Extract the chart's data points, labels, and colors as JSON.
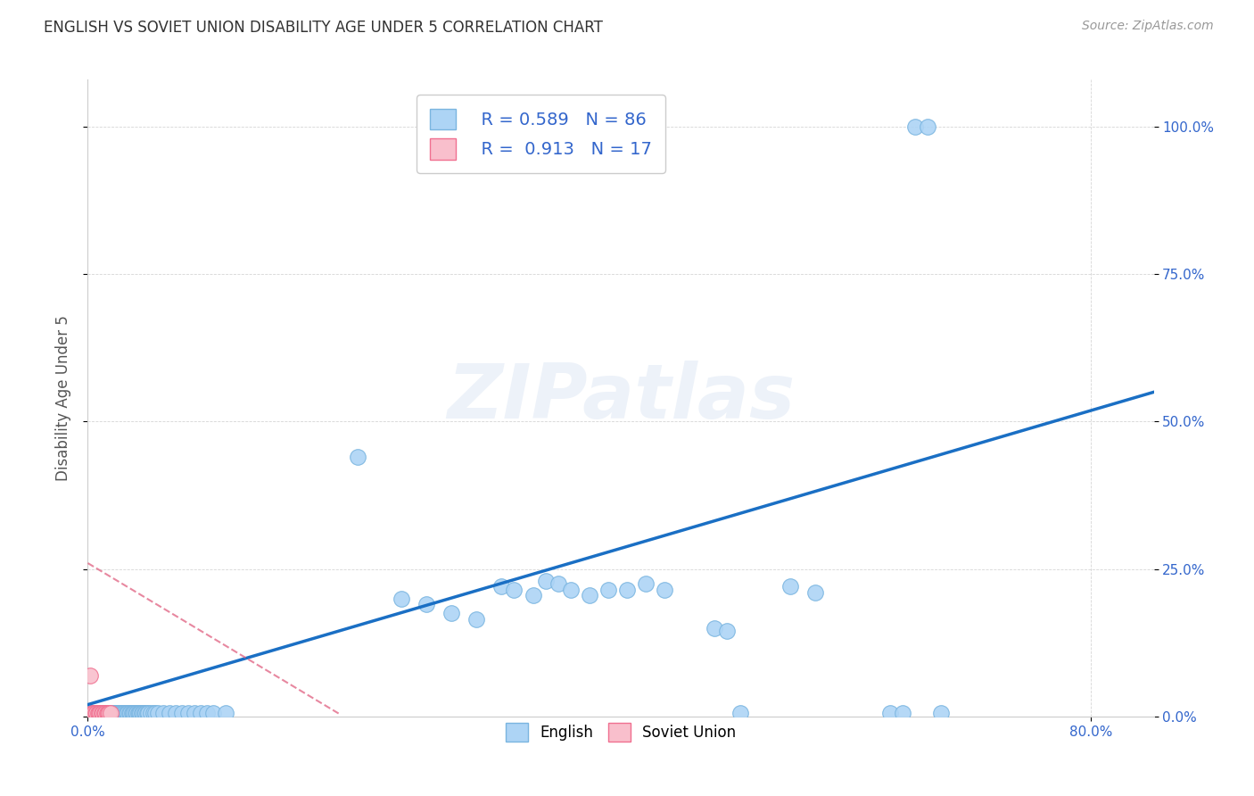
{
  "title": "ENGLISH VS SOVIET UNION DISABILITY AGE UNDER 5 CORRELATION CHART",
  "source": "Source: ZipAtlas.com",
  "ylabel": "Disability Age Under 5",
  "xlim": [
    0.0,
    0.85
  ],
  "ylim": [
    0.0,
    1.08
  ],
  "yticks": [
    0.0,
    0.25,
    0.5,
    0.75,
    1.0
  ],
  "yticklabels": [
    "0.0%",
    "25.0%",
    "50.0%",
    "75.0%",
    "100.0%"
  ],
  "english_R": 0.589,
  "english_N": 86,
  "soviet_R": 0.913,
  "soviet_N": 17,
  "english_color": "#add4f5",
  "english_edge": "#7ab5e0",
  "soviet_color": "#f9bfcc",
  "soviet_edge": "#f07090",
  "trend_english_color": "#1a6fc4",
  "trend_soviet_color": "#e06080",
  "background_color": "#ffffff",
  "watermark": "ZIPatlas",
  "english_x": [
    0.003,
    0.004,
    0.005,
    0.006,
    0.007,
    0.008,
    0.009,
    0.01,
    0.011,
    0.012,
    0.013,
    0.014,
    0.015,
    0.016,
    0.017,
    0.018,
    0.019,
    0.02,
    0.021,
    0.022,
    0.023,
    0.024,
    0.025,
    0.026,
    0.027,
    0.028,
    0.029,
    0.03,
    0.031,
    0.032,
    0.033,
    0.034,
    0.035,
    0.036,
    0.037,
    0.038,
    0.039,
    0.04,
    0.041,
    0.042,
    0.043,
    0.044,
    0.045,
    0.046,
    0.047,
    0.048,
    0.05,
    0.052,
    0.054,
    0.056,
    0.06,
    0.065,
    0.07,
    0.075,
    0.08,
    0.085,
    0.09,
    0.095,
    0.1,
    0.11,
    0.215,
    0.25,
    0.27,
    0.29,
    0.31,
    0.33,
    0.34,
    0.355,
    0.365,
    0.375,
    0.385,
    0.4,
    0.415,
    0.43,
    0.445,
    0.46,
    0.5,
    0.51,
    0.52,
    0.56,
    0.58,
    0.64,
    0.65,
    0.66,
    0.67,
    0.68
  ],
  "english_y": [
    0.005,
    0.005,
    0.005,
    0.005,
    0.005,
    0.005,
    0.005,
    0.005,
    0.005,
    0.005,
    0.005,
    0.005,
    0.005,
    0.005,
    0.005,
    0.005,
    0.005,
    0.005,
    0.005,
    0.005,
    0.005,
    0.005,
    0.005,
    0.005,
    0.005,
    0.005,
    0.005,
    0.005,
    0.005,
    0.005,
    0.005,
    0.005,
    0.005,
    0.005,
    0.005,
    0.005,
    0.005,
    0.005,
    0.005,
    0.005,
    0.005,
    0.005,
    0.005,
    0.005,
    0.005,
    0.005,
    0.005,
    0.005,
    0.005,
    0.005,
    0.005,
    0.005,
    0.005,
    0.005,
    0.005,
    0.005,
    0.005,
    0.005,
    0.005,
    0.005,
    0.44,
    0.2,
    0.19,
    0.175,
    0.165,
    0.22,
    0.215,
    0.205,
    0.23,
    0.225,
    0.215,
    0.205,
    0.215,
    0.215,
    0.225,
    0.215,
    0.15,
    0.145,
    0.005,
    0.22,
    0.21,
    0.005,
    0.005,
    1.0,
    1.0,
    0.005
  ],
  "soviet_x": [
    0.002,
    0.003,
    0.004,
    0.005,
    0.006,
    0.007,
    0.008,
    0.009,
    0.01,
    0.011,
    0.012,
    0.013,
    0.014,
    0.015,
    0.016,
    0.017,
    0.018
  ],
  "soviet_y": [
    0.07,
    0.005,
    0.005,
    0.005,
    0.005,
    0.005,
    0.005,
    0.005,
    0.005,
    0.005,
    0.005,
    0.005,
    0.005,
    0.005,
    0.005,
    0.005,
    0.005
  ],
  "trend_english_x0": 0.0,
  "trend_english_x1": 0.85,
  "trend_english_y0": 0.02,
  "trend_english_y1": 0.55,
  "trend_soviet_x0": 0.0,
  "trend_soviet_x1": 0.2,
  "trend_soviet_y0": 0.26,
  "trend_soviet_y1": 0.005
}
